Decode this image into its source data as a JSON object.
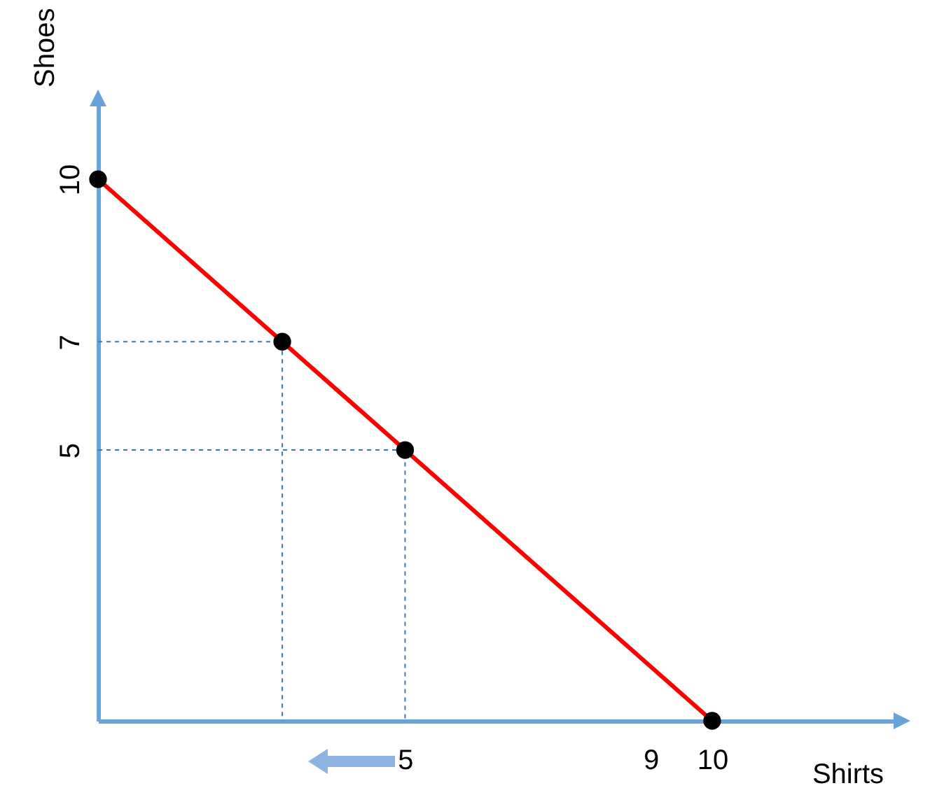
{
  "chart_data": {
    "type": "line",
    "xlabel": "Shirts",
    "ylabel": "Shoes",
    "xlim": [
      0,
      13
    ],
    "ylim": [
      0,
      11.5
    ],
    "xticks": [
      5,
      9,
      10
    ],
    "yticks": [
      5,
      7,
      10
    ],
    "series": [
      {
        "color": "#ff0000",
        "marker": "circle",
        "line_style": "solid",
        "x": [
          0,
          3,
          5,
          10
        ],
        "values": [
          10,
          7,
          5,
          0
        ]
      },
      {
        "color": "#3a78bf",
        "marker": "none",
        "line_style": "dashed",
        "x": [
          0,
          3,
          3
        ],
        "values": [
          7,
          7,
          0
        ]
      },
      {
        "color": "#3a78bf",
        "marker": "none",
        "line_style": "dashed",
        "x": [
          0,
          5,
          5
        ],
        "values": [
          5,
          5,
          0
        ]
      }
    ]
  }
}
